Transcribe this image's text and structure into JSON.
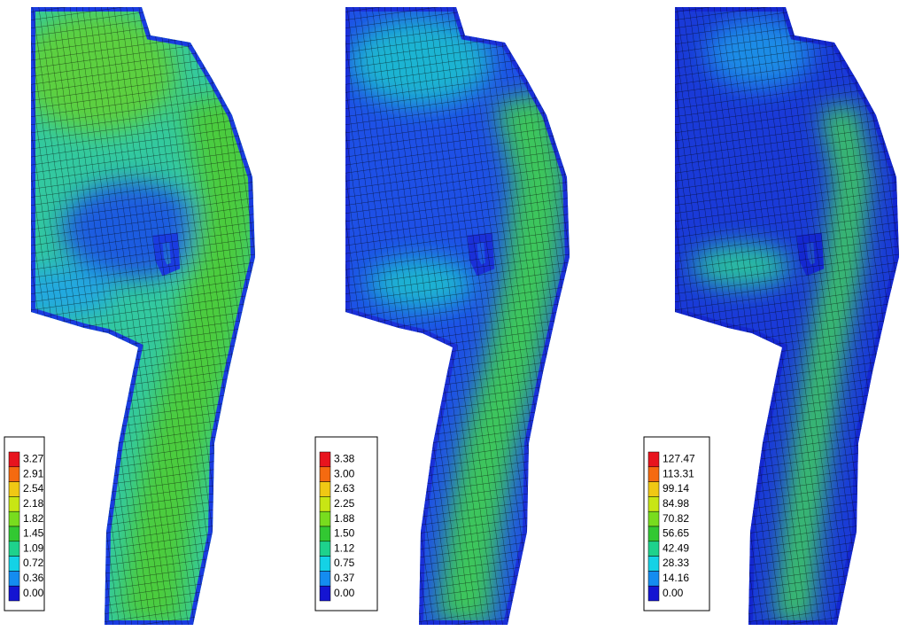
{
  "panels": [
    {
      "legend": [
        "3.27",
        "2.91",
        "2.54",
        "2.18",
        "1.82",
        "1.45",
        "1.09",
        "0.72",
        "0.36",
        "0.00"
      ]
    },
    {
      "legend": [
        "3.38",
        "3.00",
        "2.63",
        "2.25",
        "1.88",
        "1.50",
        "1.12",
        "0.75",
        "0.37",
        "0.00"
      ]
    },
    {
      "legend": [
        "127.47",
        "113.31",
        "99.14",
        "84.98",
        "70.82",
        "56.65",
        "42.49",
        "28.33",
        "14.16",
        "0.00"
      ]
    }
  ],
  "legend_colors": [
    "#e8141e",
    "#f56a10",
    "#f0c814",
    "#c8e614",
    "#78dc1e",
    "#32c832",
    "#1ed28c",
    "#14d2e6",
    "#148cf0",
    "#1414d2"
  ]
}
